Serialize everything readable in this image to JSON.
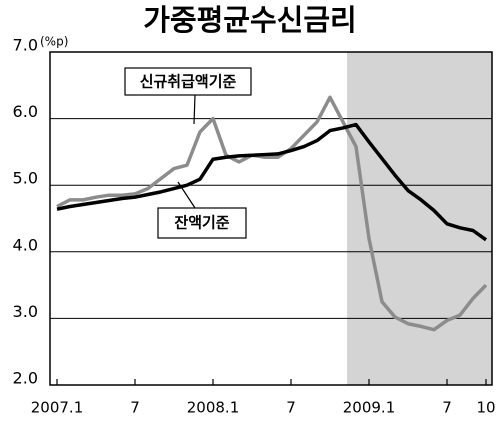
{
  "chart_data": {
    "type": "line",
    "title": "가중평균수신금리",
    "unit_label": "(%p)",
    "categories": [
      "2007.1",
      null,
      null,
      null,
      null,
      null,
      "7",
      null,
      null,
      null,
      null,
      null,
      "2008.1",
      null,
      null,
      null,
      null,
      null,
      "7",
      null,
      null,
      null,
      null,
      null,
      "2009.1",
      null,
      null,
      null,
      null,
      null,
      "7",
      null,
      null,
      "10"
    ],
    "series": [
      {
        "name": "신규취급액기준",
        "color": "#8c8c8c",
        "values": [
          4.68,
          4.78,
          4.78,
          4.82,
          4.85,
          4.85,
          4.87,
          4.95,
          5.1,
          5.25,
          5.3,
          5.8,
          6.0,
          5.45,
          5.35,
          5.45,
          5.42,
          5.42,
          5.55,
          5.75,
          5.95,
          6.32,
          5.95,
          5.58,
          4.2,
          3.25,
          3.02,
          2.92,
          2.88,
          2.83,
          2.97,
          3.05,
          3.3,
          3.5
        ]
      },
      {
        "name": "잔액기준",
        "color": "#000000",
        "values": [
          4.64,
          4.68,
          4.71,
          4.74,
          4.77,
          4.8,
          4.82,
          4.86,
          4.9,
          4.95,
          5.0,
          5.09,
          5.39,
          5.42,
          5.44,
          5.45,
          5.46,
          5.47,
          5.52,
          5.58,
          5.67,
          5.82,
          5.86,
          5.91,
          5.65,
          5.4,
          5.15,
          4.92,
          4.78,
          4.62,
          4.42,
          4.36,
          4.32,
          4.18
        ]
      }
    ],
    "ylim": [
      2,
      7
    ],
    "yticks": [
      {
        "value": 2,
        "label": "2.0"
      },
      {
        "value": 3,
        "label": "3.0"
      },
      {
        "value": 4,
        "label": "4.0"
      },
      {
        "value": 5,
        "label": "5.0"
      },
      {
        "value": 6,
        "label": "6.0"
      },
      {
        "value": 7,
        "label": "7.0"
      }
    ],
    "grid": true
  }
}
